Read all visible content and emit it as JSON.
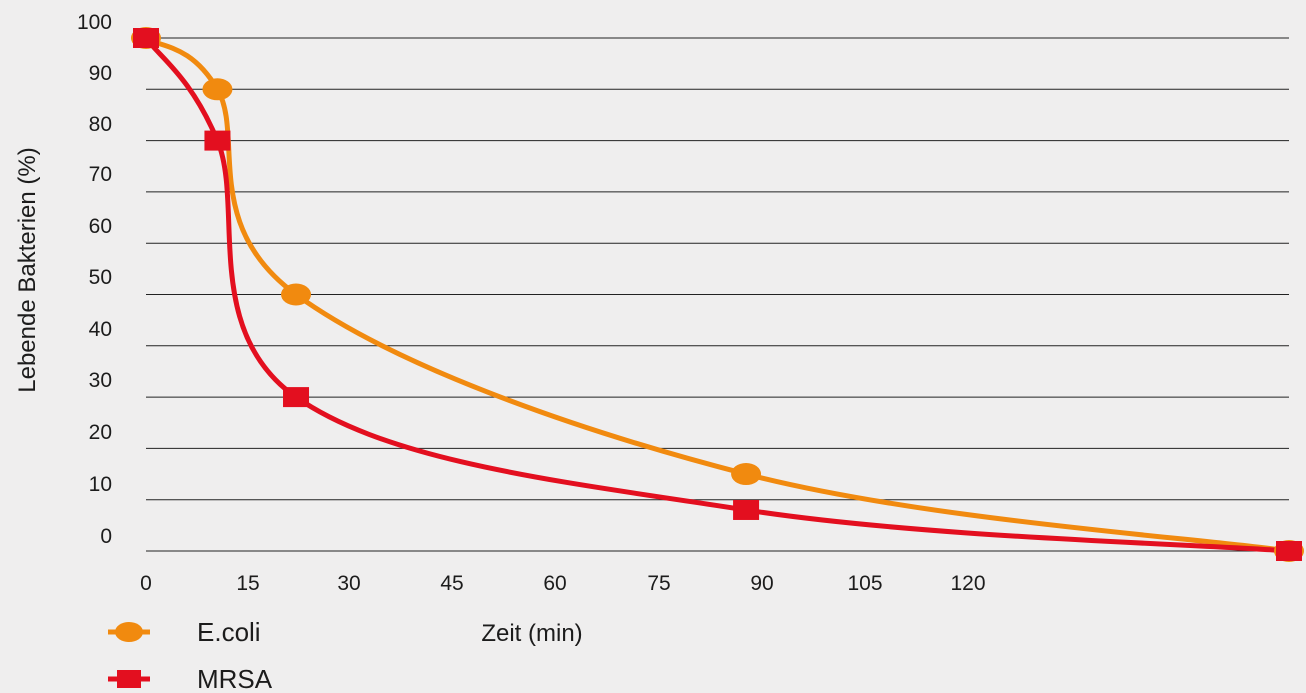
{
  "chart_data": {
    "type": "line",
    "xlabel": "Zeit (min)",
    "ylabel": "Lebende Bakterien (%)",
    "xlim": [
      0,
      160
    ],
    "ylim": [
      0,
      100
    ],
    "x_ticks": [
      "0",
      "15",
      "30",
      "45",
      "60",
      "75",
      "90",
      "105",
      "120"
    ],
    "y_ticks": [
      "0",
      "10",
      "20",
      "30",
      "40",
      "50",
      "60",
      "70",
      "80",
      "90",
      "100"
    ],
    "grid": true,
    "legend_position": "bottom-left",
    "series": [
      {
        "name": "E.coli",
        "color": "#f18a0f",
        "marker": "circle",
        "x": [
          0,
          10,
          21,
          84,
          160
        ],
        "y": [
          100,
          90,
          50,
          15,
          0
        ]
      },
      {
        "name": "MRSA",
        "color": "#e30f1f",
        "marker": "square",
        "x": [
          0,
          10,
          21,
          84,
          160
        ],
        "y": [
          100,
          80,
          30,
          8,
          0
        ]
      }
    ]
  }
}
